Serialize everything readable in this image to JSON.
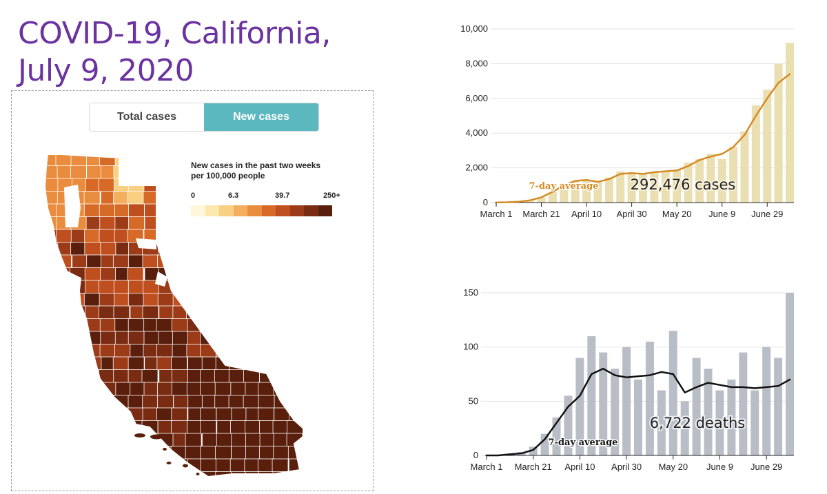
{
  "slide_title": {
    "line1": "COVID-19, California,",
    "line2": "July 9, 2020"
  },
  "map": {
    "toggle": {
      "options": [
        "Total cases",
        "New cases"
      ],
      "selected": "New cases"
    },
    "legend": {
      "title_line1": "New cases in the past two weeks",
      "title_line2": "per 100,000 people",
      "ticks": [
        "0",
        "6.3",
        "39.7",
        "250+"
      ],
      "colors": [
        "#fff7d9",
        "#fde8ad",
        "#f9cf82",
        "#f3ae5e",
        "#ea8c3d",
        "#d86a28",
        "#bf4f1f",
        "#9c3b18",
        "#7a2c12",
        "#5a1f0c"
      ]
    },
    "colors": {
      "no_data": "#ffffff",
      "border": "#ffffff"
    }
  },
  "chart_data": [
    {
      "type": "bar",
      "subtype": "bar-with-line",
      "x_tick_labels": [
        "March 1",
        "March 21",
        "April 10",
        "April 30",
        "May 20",
        "June 9",
        "June 29"
      ],
      "y_tick_labels": [
        "0",
        "2,000",
        "4,000",
        "6,000",
        "8,000",
        "10,000"
      ],
      "ylim": [
        0,
        10000
      ],
      "series": [
        {
          "name": "",
          "kind": "daily bars",
          "color": "#e9dfb1",
          "dates": [
            "2020-03-01",
            "2020-03-06",
            "2020-03-11",
            "2020-03-16",
            "2020-03-21",
            "2020-03-26",
            "2020-03-31",
            "2020-04-05",
            "2020-04-10",
            "2020-04-15",
            "2020-04-20",
            "2020-04-25",
            "2020-04-30",
            "2020-05-05",
            "2020-05-10",
            "2020-05-15",
            "2020-05-20",
            "2020-05-25",
            "2020-05-30",
            "2020-06-04",
            "2020-06-09",
            "2020-06-14",
            "2020-06-19",
            "2020-06-24",
            "2020-06-29",
            "2020-07-04",
            "2020-07-09"
          ],
          "values": [
            10,
            25,
            60,
            150,
            300,
            600,
            1000,
            1250,
            1300,
            1200,
            1450,
            1800,
            1700,
            1650,
            1750,
            1800,
            1900,
            2300,
            2500,
            2800,
            2500,
            3200,
            4100,
            5600,
            6500,
            8000,
            9200
          ]
        },
        {
          "name": "7-day average",
          "kind": "line",
          "color": "#d58b24",
          "dates": [
            "2020-03-01",
            "2020-03-06",
            "2020-03-11",
            "2020-03-16",
            "2020-03-21",
            "2020-03-26",
            "2020-03-31",
            "2020-04-05",
            "2020-04-10",
            "2020-04-15",
            "2020-04-20",
            "2020-04-25",
            "2020-04-30",
            "2020-05-05",
            "2020-05-10",
            "2020-05-15",
            "2020-05-20",
            "2020-05-25",
            "2020-05-30",
            "2020-06-04",
            "2020-06-09",
            "2020-06-14",
            "2020-06-19",
            "2020-06-24",
            "2020-06-29",
            "2020-07-04",
            "2020-07-09"
          ],
          "values": [
            5,
            20,
            50,
            130,
            300,
            620,
            1000,
            1250,
            1300,
            1200,
            1350,
            1650,
            1700,
            1650,
            1750,
            1800,
            1850,
            2100,
            2450,
            2650,
            2800,
            3200,
            3900,
            5000,
            6000,
            6900,
            7400
          ]
        }
      ],
      "annotations": {
        "line_label": "7-day average",
        "total": "292,476 cases"
      }
    },
    {
      "type": "bar",
      "subtype": "bar-with-line",
      "x_tick_labels": [
        "March 1",
        "March 21",
        "April 10",
        "April 30",
        "May 20",
        "June 9",
        "June 29"
      ],
      "y_tick_labels": [
        "0",
        "50",
        "100",
        "150"
      ],
      "ylim": [
        0,
        150
      ],
      "series": [
        {
          "name": "",
          "kind": "daily bars",
          "color": "#b9bec6",
          "dates": [
            "2020-03-01",
            "2020-03-06",
            "2020-03-11",
            "2020-03-16",
            "2020-03-21",
            "2020-03-26",
            "2020-03-31",
            "2020-04-05",
            "2020-04-10",
            "2020-04-15",
            "2020-04-20",
            "2020-04-25",
            "2020-04-30",
            "2020-05-05",
            "2020-05-10",
            "2020-05-15",
            "2020-05-20",
            "2020-05-25",
            "2020-05-30",
            "2020-06-04",
            "2020-06-09",
            "2020-06-14",
            "2020-06-19",
            "2020-06-24",
            "2020-06-29",
            "2020-07-04",
            "2020-07-09"
          ],
          "values": [
            0,
            0,
            1,
            3,
            8,
            20,
            35,
            55,
            90,
            110,
            95,
            80,
            100,
            70,
            105,
            60,
            115,
            50,
            90,
            80,
            60,
            70,
            95,
            60,
            100,
            90,
            150
          ]
        },
        {
          "name": "7-day average",
          "kind": "line",
          "color": "#111111",
          "dates": [
            "2020-03-01",
            "2020-03-06",
            "2020-03-11",
            "2020-03-16",
            "2020-03-21",
            "2020-03-26",
            "2020-03-31",
            "2020-04-05",
            "2020-04-10",
            "2020-04-15",
            "2020-04-20",
            "2020-04-25",
            "2020-04-30",
            "2020-05-05",
            "2020-05-10",
            "2020-05-15",
            "2020-05-20",
            "2020-05-25",
            "2020-05-30",
            "2020-06-04",
            "2020-06-09",
            "2020-06-14",
            "2020-06-19",
            "2020-06-24",
            "2020-06-29",
            "2020-07-04",
            "2020-07-09"
          ],
          "values": [
            0,
            0,
            1,
            2,
            5,
            15,
            30,
            45,
            55,
            75,
            80,
            74,
            72,
            73,
            74,
            77,
            75,
            58,
            63,
            67,
            65,
            63,
            63,
            62,
            63,
            64,
            70
          ]
        }
      ],
      "annotations": {
        "line_label": "7-day average",
        "total": "6,722 deaths"
      }
    }
  ]
}
